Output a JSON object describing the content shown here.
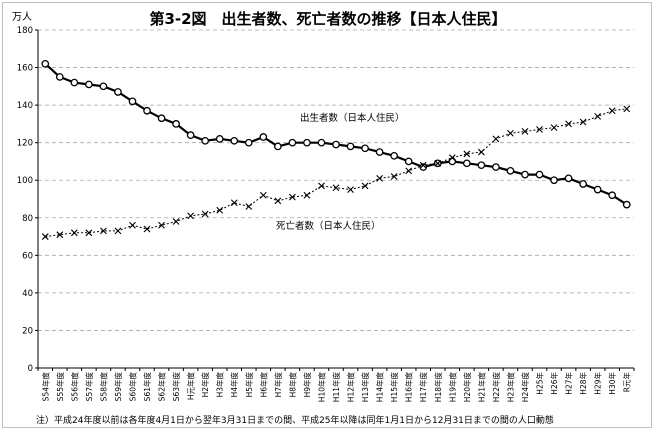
{
  "chart_data": {
    "type": "line",
    "title": "第3-2図　出生者数、死亡者数の推移【日本人住民】",
    "unit": "万人",
    "ylim": [
      0,
      180
    ],
    "yticks": [
      0,
      20,
      40,
      60,
      80,
      100,
      120,
      140,
      160,
      180
    ],
    "grid": true,
    "categories": [
      "S54年度",
      "S55年度",
      "S56年度",
      "S57年度",
      "S58年度",
      "S59年度",
      "S60年度",
      "S61年度",
      "S62年度",
      "S63年度",
      "H元年度",
      "H2年度",
      "H3年度",
      "H4年度",
      "H5年度",
      "H6年度",
      "H7年度",
      "H8年度",
      "H9年度",
      "H10年度",
      "H11年度",
      "H12年度",
      "H13年度",
      "H14年度",
      "H15年度",
      "H16年度",
      "H17年度",
      "H18年度",
      "H19年度",
      "H20年度",
      "H21年度",
      "H22年度",
      "H23年度",
      "H24年度",
      "H25年",
      "H26年",
      "H27年",
      "H28年",
      "H29年",
      "H30年",
      "R元年"
    ],
    "series": [
      {
        "name": "出生者数（日本人住民）",
        "marker": "circle",
        "color": "#000000",
        "values": [
          162,
          155,
          152,
          151,
          150,
          147,
          142,
          137,
          133,
          130,
          124,
          121,
          122,
          121,
          120,
          123,
          118,
          120,
          120,
          120,
          119,
          118,
          117,
          115,
          113,
          110,
          107,
          109,
          110,
          109,
          108,
          107,
          105,
          103,
          103,
          100,
          101,
          98,
          95,
          92,
          87
        ]
      },
      {
        "name": "死亡者数（日本人住民）",
        "marker": "x",
        "color": "#000000",
        "values": [
          70,
          71,
          72,
          72,
          73,
          73,
          76,
          74,
          76,
          78,
          81,
          82,
          84,
          88,
          86,
          92,
          89,
          91,
          92,
          97,
          96,
          95,
          97,
          101,
          102,
          105,
          108,
          109,
          112,
          114,
          115,
          122,
          125,
          126,
          127,
          128,
          130,
          131,
          134,
          137,
          138
        ]
      }
    ],
    "annotations": [
      {
        "text": "出生者数（日本人住民）",
        "series": 0
      },
      {
        "text": "死亡者数（日本人住民）",
        "series": 1
      }
    ],
    "footnote": "注）平成24年度以前は各年度4月1日から翌年3月31日までの間、平成25年以降は同年1月1日から12月31日までの間の人口動態"
  }
}
